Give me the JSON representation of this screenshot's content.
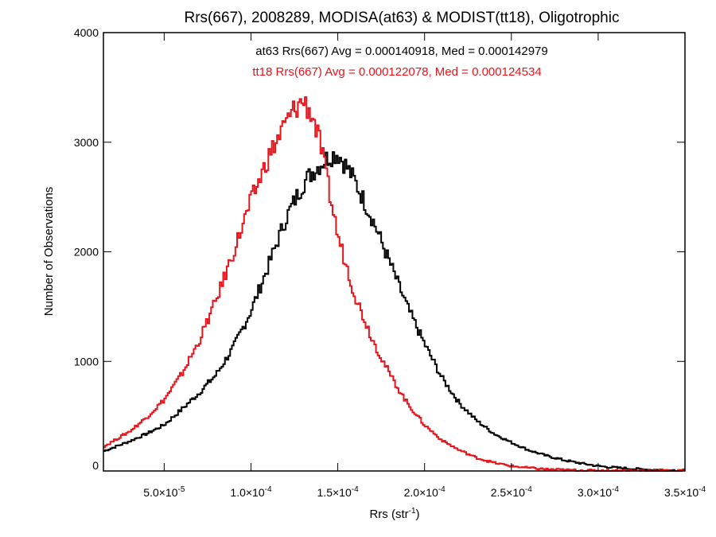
{
  "chart_data": {
    "type": "line",
    "title": "Rrs(667), 2008289, MODISA(at63) & MODIST(tt18), Oligotrophic",
    "xlabel": "Rrs (str",
    "xlabel_sup": "-1",
    "xlabel_tail": ")",
    "ylabel": "Number of Observations",
    "xlim": [
      1.5e-05,
      0.00035
    ],
    "ylim": [
      0,
      4000
    ],
    "xticks": [
      {
        "value": 5e-05,
        "label": "5.0×10",
        "exp": "-5"
      },
      {
        "value": 0.0001,
        "label": "1.0×10",
        "exp": "-4"
      },
      {
        "value": 0.00015,
        "label": "1.5×10",
        "exp": "-4"
      },
      {
        "value": 0.0002,
        "label": "2.0×10",
        "exp": "-4"
      },
      {
        "value": 0.00025,
        "label": "2.5×10",
        "exp": "-4"
      },
      {
        "value": 0.0003,
        "label": "3.0×10",
        "exp": "-4"
      },
      {
        "value": 0.00035,
        "label": "3.5×10",
        "exp": "-4"
      }
    ],
    "yticks": [
      {
        "value": 0,
        "label": "0"
      },
      {
        "value": 1000,
        "label": "1000"
      },
      {
        "value": 2000,
        "label": "2000"
      },
      {
        "value": 3000,
        "label": "3000"
      },
      {
        "value": 4000,
        "label": "4000"
      }
    ],
    "annotations": [
      {
        "text": "at63 Rrs(667) Avg = 0.000140918, Med = 0.000142979",
        "color": "#000000"
      },
      {
        "text": "tt18 Rrs(667) Avg = 0.000122078, Med = 0.000124534",
        "color": "#e8141c"
      }
    ],
    "series": [
      {
        "color": "#000000",
        "step": "histogram",
        "x": [
          1.5e-05,
          3e-05,
          4e-05,
          5e-05,
          6e-05,
          7e-05,
          8e-05,
          9e-05,
          0.0001,
          0.00011,
          0.00012,
          0.00013,
          0.000135,
          0.00014,
          0.000145,
          0.00015,
          0.000155,
          0.00016,
          0.00017,
          0.00018,
          0.00019,
          0.0002,
          0.00021,
          0.00022,
          0.00023,
          0.00024,
          0.00025,
          0.00026,
          0.00027,
          0.00028,
          0.00029,
          0.0003,
          0.00031,
          0.00032,
          0.00033,
          0.00034,
          0.00035
        ],
        "y": [
          180,
          270,
          340,
          420,
          560,
          710,
          880,
          1130,
          1460,
          1870,
          2300,
          2620,
          2720,
          2800,
          2870,
          2900,
          2780,
          2640,
          2300,
          1900,
          1500,
          1160,
          850,
          620,
          460,
          340,
          260,
          190,
          140,
          100,
          70,
          45,
          30,
          20,
          12,
          8,
          5
        ]
      },
      {
        "color": "#e8141c",
        "step": "histogram",
        "x": [
          1.5e-05,
          3e-05,
          4e-05,
          5e-05,
          6e-05,
          7e-05,
          8e-05,
          9e-05,
          0.0001,
          0.00011,
          0.00012,
          0.000125,
          0.00013,
          0.000135,
          0.00014,
          0.000145,
          0.00015,
          0.00016,
          0.00017,
          0.00018,
          0.00019,
          0.0002,
          0.00021,
          0.00022,
          0.00023,
          0.00024,
          0.00025,
          0.00026,
          0.00027,
          0.00028,
          0.00029,
          0.0003,
          0.00032,
          0.00035
        ],
        "y": [
          220,
          360,
          490,
          650,
          880,
          1180,
          1560,
          2000,
          2460,
          2860,
          3170,
          3300,
          3380,
          3260,
          2980,
          2560,
          2150,
          1600,
          1200,
          880,
          620,
          420,
          280,
          190,
          120,
          75,
          45,
          28,
          16,
          10,
          6,
          4,
          2,
          1
        ]
      }
    ]
  }
}
